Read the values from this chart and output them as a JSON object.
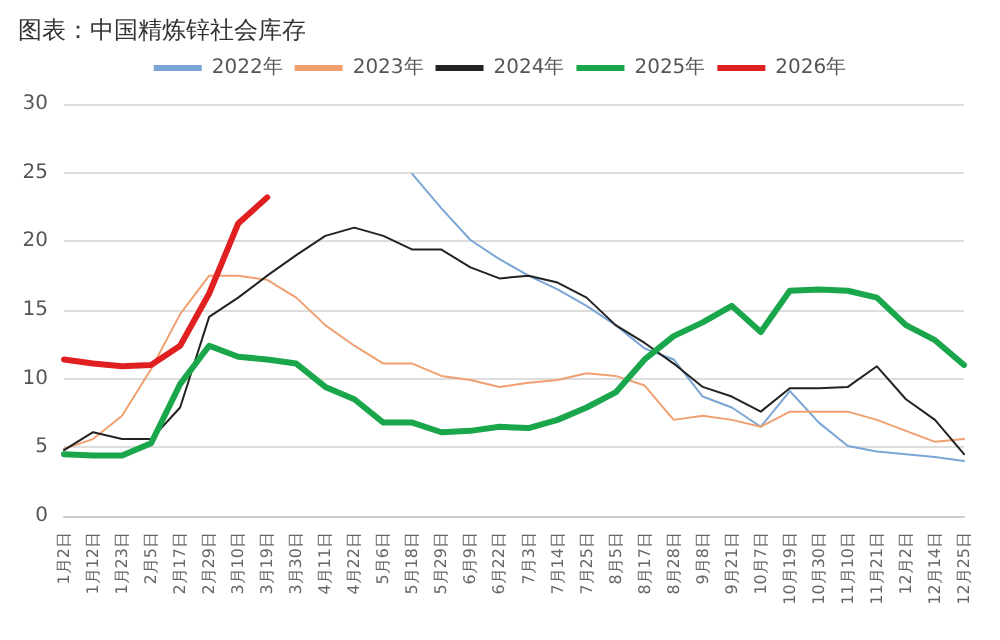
{
  "chart_data": {
    "type": "line",
    "title": "图表：中国精炼锌社会库存",
    "categories": [
      "1月2日",
      "1月12日",
      "1月23日",
      "2月5日",
      "2月17日",
      "2月29日",
      "3月10日",
      "3月19日",
      "3月30日",
      "4月11日",
      "4月22日",
      "5月6日",
      "5月18日",
      "5月29日",
      "6月9日",
      "6月22日",
      "7月3日",
      "7月14日",
      "7月25日",
      "8月5日",
      "8月17日",
      "8月28日",
      "9月8日",
      "9月21日",
      "10月7日",
      "10月19日",
      "10月30日",
      "11月10日",
      "11月21日",
      "12月2日",
      "12月14日",
      "12月25日"
    ],
    "series": [
      {
        "name": "2022年",
        "color": "#7aa6d6",
        "values": [
          null,
          null,
          null,
          null,
          null,
          null,
          null,
          null,
          null,
          null,
          null,
          null,
          24.9,
          22.4,
          20.1,
          18.7,
          17.5,
          16.5,
          15.3,
          13.9,
          12.2,
          11.4,
          8.7,
          7.9,
          6.5,
          9.1,
          6.8,
          5.1,
          4.7,
          4.5,
          4.3,
          4.0
        ]
      },
      {
        "name": "2023年",
        "color": "#f0a070",
        "values": [
          4.9,
          5.6,
          7.3,
          10.7,
          14.7,
          17.5,
          17.5,
          17.2,
          15.9,
          13.9,
          12.4,
          11.1,
          11.1,
          10.2,
          9.9,
          9.4,
          9.7,
          9.9,
          10.4,
          10.2,
          9.5,
          7.0,
          7.3,
          7.0,
          6.5,
          7.6,
          7.6,
          7.6,
          7.0,
          6.2,
          5.4,
          5.6
        ]
      },
      {
        "name": "2024年",
        "color": "#222222",
        "values": [
          4.8,
          6.1,
          5.6,
          5.6,
          7.9,
          14.5,
          15.9,
          17.5,
          19.0,
          20.4,
          21.0,
          20.4,
          19.4,
          19.4,
          18.1,
          17.3,
          17.5,
          17.0,
          15.9,
          13.9,
          12.6,
          11.1,
          9.4,
          8.7,
          7.6,
          9.3,
          9.3,
          9.4,
          10.9,
          8.5,
          7.0,
          4.5
        ]
      },
      {
        "name": "2025年",
        "color": "#1aa64a",
        "values": [
          4.5,
          4.4,
          4.4,
          5.3,
          9.6,
          12.4,
          11.6,
          11.4,
          11.1,
          9.4,
          8.5,
          6.8,
          6.8,
          6.1,
          6.2,
          6.5,
          6.4,
          7.0,
          7.9,
          9.0,
          11.4,
          13.1,
          14.1,
          15.3,
          13.4,
          16.4,
          16.5,
          16.4,
          15.9,
          13.9,
          12.8,
          11.0
        ]
      },
      {
        "name": "2026年",
        "color": "#e02020",
        "values": [
          11.4,
          11.1,
          10.9,
          11.0,
          12.4,
          16.2,
          21.3,
          23.2,
          null,
          null,
          null,
          null,
          null,
          null,
          null,
          null,
          null,
          null,
          null,
          null,
          null,
          null,
          null,
          null,
          null,
          null,
          null,
          null,
          null,
          null,
          null,
          null
        ]
      }
    ],
    "ylim": [
      0,
      30
    ],
    "yticks": [
      0,
      5,
      10,
      15,
      20,
      25,
      30
    ],
    "grid": "y",
    "legend": "top",
    "marker": "none",
    "line_style": "solid"
  }
}
